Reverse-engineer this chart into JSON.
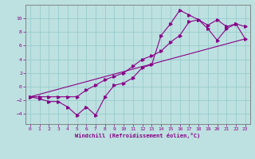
{
  "background_color": "#bde0e0",
  "line_color": "#880088",
  "grid_color": "#99cccc",
  "xlabel": "Windchill (Refroidissement éolien,°C)",
  "xlabel_color": "#880088",
  "xlim": [
    -0.5,
    23.5
  ],
  "ylim": [
    -5.5,
    12.0
  ],
  "yticks": [
    -4,
    -2,
    0,
    2,
    4,
    6,
    8,
    10
  ],
  "xticks": [
    0,
    1,
    2,
    3,
    4,
    5,
    6,
    7,
    8,
    9,
    10,
    11,
    12,
    13,
    14,
    15,
    16,
    17,
    18,
    19,
    20,
    21,
    22,
    23
  ],
  "line1_x": [
    0,
    1,
    2,
    3,
    4,
    5,
    6,
    7,
    8,
    9,
    10,
    11,
    12,
    13,
    14,
    15,
    16,
    17,
    18,
    19,
    20,
    21,
    22,
    23
  ],
  "line1_y": [
    -1.5,
    -1.8,
    -2.2,
    -2.2,
    -3.0,
    -4.2,
    -3.0,
    -4.2,
    -1.5,
    0.2,
    0.5,
    1.3,
    2.8,
    3.2,
    7.5,
    9.2,
    11.2,
    10.5,
    9.8,
    9.0,
    9.8,
    8.8,
    9.2,
    8.8
  ],
  "line2_x": [
    0,
    1,
    2,
    3,
    4,
    5,
    6,
    7,
    8,
    9,
    10,
    11,
    12,
    13,
    14,
    15,
    16,
    17,
    18,
    19,
    20,
    21,
    22,
    23
  ],
  "line2_y": [
    -1.5,
    -1.5,
    -1.5,
    -1.5,
    -1.5,
    -1.5,
    -0.5,
    0.2,
    1.0,
    1.5,
    2.0,
    3.0,
    4.0,
    4.5,
    5.2,
    6.5,
    7.5,
    9.5,
    9.8,
    8.5,
    6.8,
    8.5,
    9.2,
    7.0
  ],
  "line3_x": [
    0,
    23
  ],
  "line3_y": [
    -1.5,
    7.0
  ]
}
